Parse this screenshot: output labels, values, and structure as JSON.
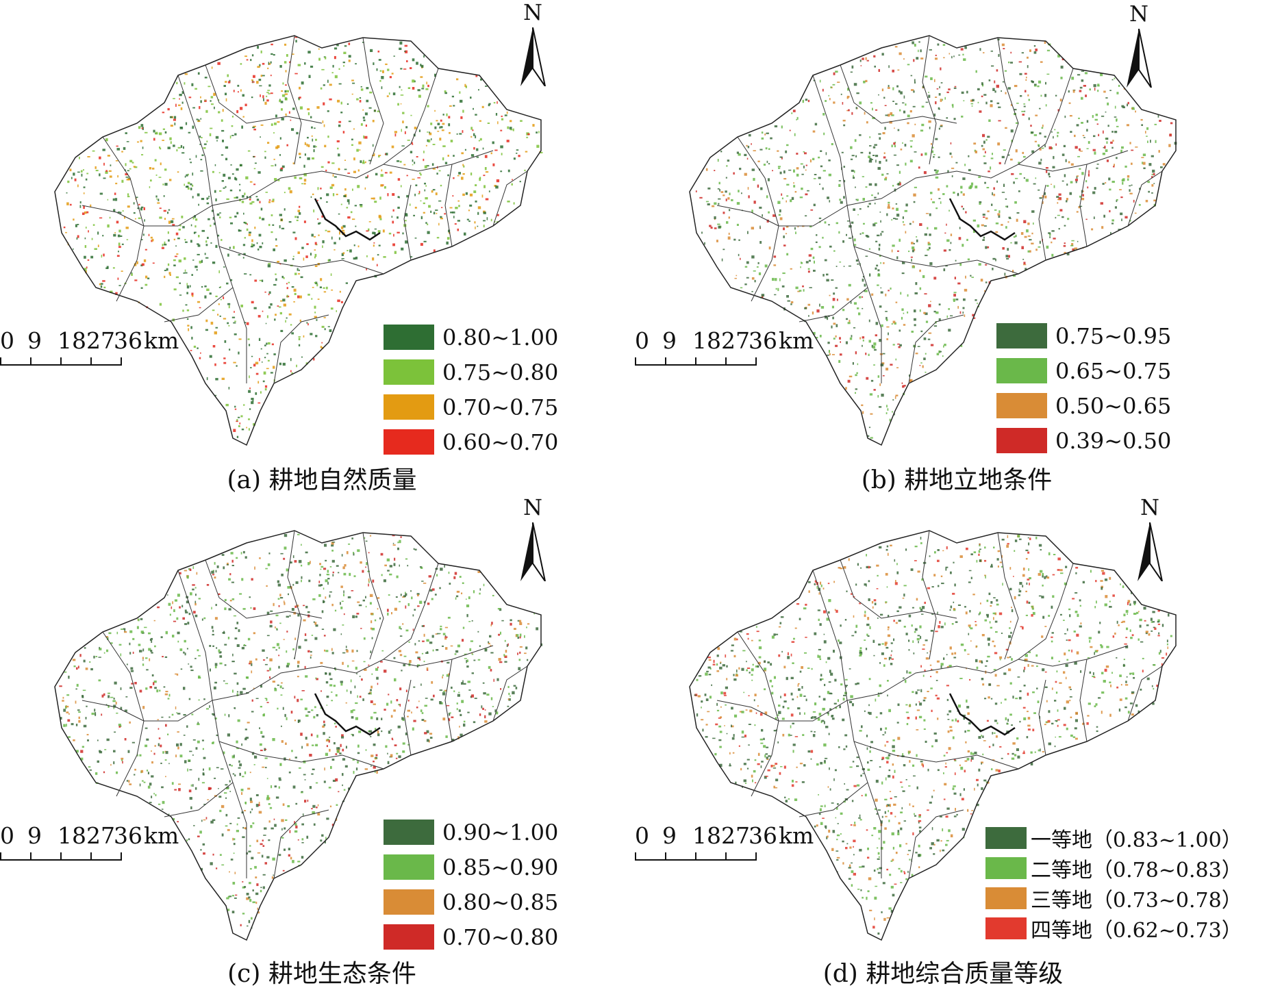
{
  "panels": [
    {
      "caption": "(a) 耕地自然质量",
      "north": "N",
      "scale": {
        "labels": [
          "0",
          "9",
          "18",
          "27",
          "36"
        ],
        "unit": "km"
      },
      "legend": [
        {
          "label": "0.80~1.00",
          "color": "#2e6e33"
        },
        {
          "label": "0.75~0.80",
          "color": "#7cc23a"
        },
        {
          "label": "0.70~0.75",
          "color": "#e39b12"
        },
        {
          "label": "0.60~0.70",
          "color": "#e62a1e"
        }
      ],
      "dots": [
        "#2e6e33",
        "#7cc23a",
        "#e39b12",
        "#e62a1e"
      ]
    },
    {
      "caption": "(b) 耕地立地条件",
      "north": "N",
      "scale": {
        "labels": [
          "0",
          "9",
          "18",
          "27",
          "36"
        ],
        "unit": "km"
      },
      "legend": [
        {
          "label": "0.75~0.95",
          "color": "#3d6b3d"
        },
        {
          "label": "0.65~0.75",
          "color": "#6ab84a"
        },
        {
          "label": "0.50~0.65",
          "color": "#d98c36"
        },
        {
          "label": "0.39~0.50",
          "color": "#cf2a27"
        }
      ],
      "dots": [
        "#3d6b3d",
        "#6ab84a",
        "#d98c36",
        "#cf2a27"
      ]
    },
    {
      "caption": "(c) 耕地生态条件",
      "north": "N",
      "scale": {
        "labels": [
          "0",
          "9",
          "18",
          "27",
          "36"
        ],
        "unit": "km"
      },
      "legend": [
        {
          "label": "0.90~1.00",
          "color": "#3d6b3d"
        },
        {
          "label": "0.85~0.90",
          "color": "#6ab84a"
        },
        {
          "label": "0.80~0.85",
          "color": "#d98c36"
        },
        {
          "label": "0.70~0.80",
          "color": "#cf2a27"
        }
      ],
      "dots": [
        "#3d6b3d",
        "#6ab84a",
        "#d98c36",
        "#cf2a27"
      ]
    },
    {
      "caption": "(d) 耕地综合质量等级",
      "north": "N",
      "scale": {
        "labels": [
          "0",
          "9",
          "18",
          "27",
          "36"
        ],
        "unit": "km"
      },
      "legend": [
        {
          "label": "一等地（0.83~1.00）",
          "color": "#3d6b3d"
        },
        {
          "label": "二等地（0.78~0.83）",
          "color": "#6ab84a"
        },
        {
          "label": "三等地（0.73~0.78）",
          "color": "#d98c36"
        },
        {
          "label": "四等地（0.62~0.73）",
          "color": "#e23a2e"
        }
      ],
      "dots": [
        "#3d6b3d",
        "#6ab84a",
        "#d98c36",
        "#e23a2e"
      ]
    }
  ]
}
